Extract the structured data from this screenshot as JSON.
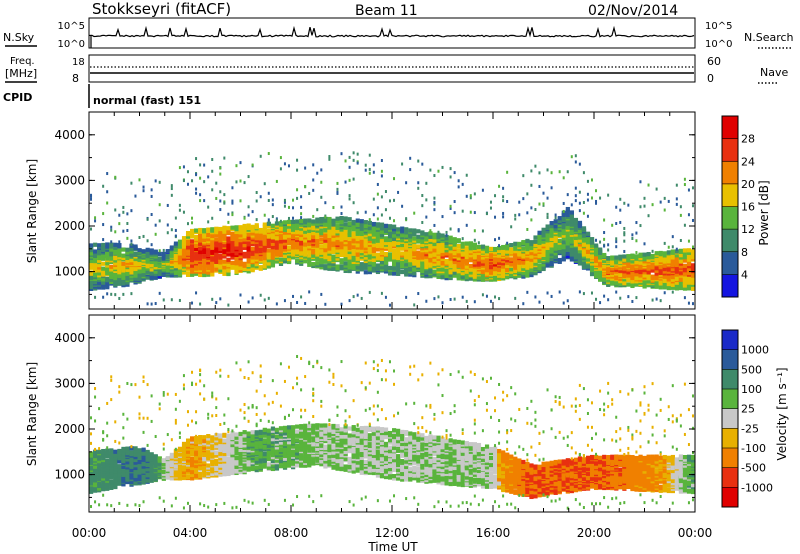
{
  "header": {
    "station": "Stokkseyri (fitACF)",
    "beam": "Beam 11",
    "date": "02/Nov/2014"
  },
  "strip": {
    "nsky_label": "N.Sky",
    "nsearch_label": "N.Search",
    "nsky_ticks": [
      "10^5",
      "10^0"
    ],
    "freq_label": "Freq.",
    "freq_unit": "[MHz]",
    "freq_ticks": [
      "18",
      "8"
    ],
    "nave_label": "Nave",
    "nave_ticks": [
      "60",
      "0"
    ],
    "cpid_label": "CPID",
    "cpid_value": "normal (fast) 151"
  },
  "chart_data": [
    {
      "type": "heatmap",
      "name": "power",
      "ylabel": "Slant Range [km]",
      "xlabel": "Time UT",
      "xlim": [
        0,
        24
      ],
      "ylim": [
        180,
        4500
      ],
      "x_ticks": [
        "00:00",
        "04:00",
        "08:00",
        "12:00",
        "16:00",
        "20:00",
        "00:00"
      ],
      "y_ticks": [
        1000,
        2000,
        3000,
        4000
      ],
      "colorbar": {
        "label": "Power [dB]",
        "ticks": [
          "4",
          "8",
          "12",
          "16",
          "20",
          "24",
          "28"
        ],
        "colors": [
          "#1515e0",
          "#2a5a9a",
          "#3f8a6a",
          "#59b43c",
          "#e8c000",
          "#f08000",
          "#e83010",
          "#e00000"
        ]
      },
      "band": [
        {
          "t": 0.0,
          "lo": 600,
          "hi": 1600,
          "p": 12
        },
        {
          "t": 1.5,
          "lo": 700,
          "hi": 1600,
          "p": 14
        },
        {
          "t": 3.0,
          "lo": 900,
          "hi": 1400,
          "p": 10
        },
        {
          "t": 4.0,
          "lo": 900,
          "hi": 1900,
          "p": 22
        },
        {
          "t": 6.0,
          "lo": 950,
          "hi": 2000,
          "p": 22
        },
        {
          "t": 8.0,
          "lo": 1200,
          "hi": 2100,
          "p": 18
        },
        {
          "t": 10.0,
          "lo": 1000,
          "hi": 2200,
          "p": 16
        },
        {
          "t": 12.0,
          "lo": 950,
          "hi": 2000,
          "p": 14
        },
        {
          "t": 14.0,
          "lo": 850,
          "hi": 1800,
          "p": 16
        },
        {
          "t": 16.0,
          "lo": 800,
          "hi": 1500,
          "p": 20
        },
        {
          "t": 17.5,
          "lo": 900,
          "hi": 1700,
          "p": 16
        },
        {
          "t": 19.0,
          "lo": 1300,
          "hi": 2400,
          "p": 10
        },
        {
          "t": 20.5,
          "lo": 700,
          "hi": 1300,
          "p": 18
        },
        {
          "t": 24.0,
          "lo": 600,
          "hi": 1500,
          "p": 20
        }
      ]
    },
    {
      "type": "heatmap",
      "name": "velocity",
      "ylabel": "Slant Range [km]",
      "xlabel": "Time UT",
      "xlim": [
        0,
        24
      ],
      "ylim": [
        180,
        4500
      ],
      "x_ticks": [
        "00:00",
        "04:00",
        "08:00",
        "12:00",
        "16:00",
        "20:00",
        "00:00"
      ],
      "y_ticks": [
        1000,
        2000,
        3000,
        4000
      ],
      "colorbar": {
        "label": "Velocity [m s⁻¹]",
        "ticks": [
          "1000",
          "500",
          "100",
          "25",
          "-25",
          "-100",
          "-500",
          "-1000"
        ],
        "colors": [
          "#1a2ac8",
          "#2a5a9a",
          "#3f8a6a",
          "#59b43c",
          "#c8c8c8",
          "#e8b000",
          "#f08000",
          "#e83010",
          "#e00000"
        ]
      },
      "band": [
        {
          "t": 0.0,
          "lo": 600,
          "hi": 1500,
          "v": 100
        },
        {
          "t": 2.0,
          "lo": 800,
          "hi": 1600,
          "v": 500
        },
        {
          "t": 3.0,
          "lo": 900,
          "hi": 1300,
          "v": 25
        },
        {
          "t": 4.0,
          "lo": 900,
          "hi": 1800,
          "v": -100
        },
        {
          "t": 7.0,
          "lo": 1100,
          "hi": 2000,
          "v": 100
        },
        {
          "t": 9.0,
          "lo": 1200,
          "hi": 2100,
          "v": 25
        },
        {
          "t": 12.0,
          "lo": 900,
          "hi": 2000,
          "v": 25
        },
        {
          "t": 16.0,
          "lo": 700,
          "hi": 1600,
          "v": 25
        },
        {
          "t": 17.5,
          "lo": 500,
          "hi": 1200,
          "v": -500
        },
        {
          "t": 20.0,
          "lo": 700,
          "hi": 1400,
          "v": -500
        },
        {
          "t": 24.0,
          "lo": 600,
          "hi": 1400,
          "v": 100
        }
      ]
    }
  ]
}
